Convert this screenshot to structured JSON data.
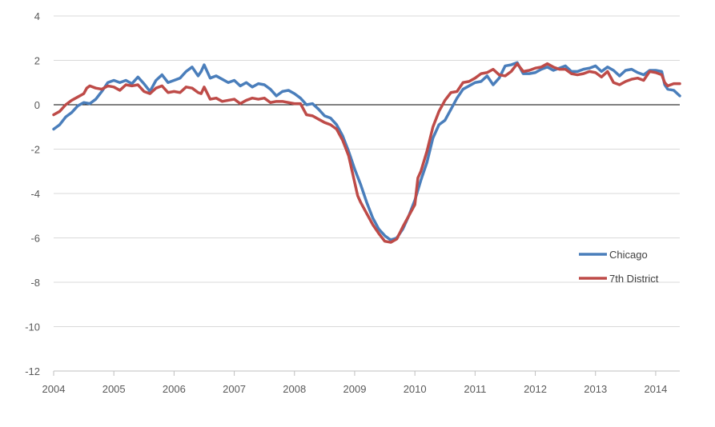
{
  "chart_data": {
    "type": "line",
    "title": "",
    "xlabel": "",
    "ylabel": "",
    "xlim": [
      2004.0,
      2014.4
    ],
    "ylim": [
      -12,
      4
    ],
    "y_ticks": [
      4,
      2,
      0,
      -2,
      -4,
      -6,
      -8,
      -10,
      -12
    ],
    "x_ticks": [
      2004,
      2005,
      2006,
      2007,
      2008,
      2009,
      2010,
      2011,
      2012,
      2013,
      2014
    ],
    "grid": "horizontal",
    "zero_line": true,
    "legend_position": "right",
    "series": [
      {
        "name": "Chicago",
        "color": "#4a7ebb",
        "points": [
          [
            2004.0,
            -1.1
          ],
          [
            2004.1,
            -0.9
          ],
          [
            2004.2,
            -0.55
          ],
          [
            2004.3,
            -0.35
          ],
          [
            2004.4,
            -0.05
          ],
          [
            2004.5,
            0.1
          ],
          [
            2004.6,
            0.05
          ],
          [
            2004.7,
            0.25
          ],
          [
            2004.8,
            0.6
          ],
          [
            2004.9,
            1.0
          ],
          [
            2005.0,
            1.1
          ],
          [
            2005.1,
            1.0
          ],
          [
            2005.2,
            1.1
          ],
          [
            2005.3,
            0.95
          ],
          [
            2005.4,
            1.25
          ],
          [
            2005.5,
            0.95
          ],
          [
            2005.6,
            0.6
          ],
          [
            2005.7,
            1.1
          ],
          [
            2005.8,
            1.35
          ],
          [
            2005.9,
            1.0
          ],
          [
            2006.0,
            1.1
          ],
          [
            2006.1,
            1.2
          ],
          [
            2006.2,
            1.5
          ],
          [
            2006.3,
            1.7
          ],
          [
            2006.4,
            1.3
          ],
          [
            2006.45,
            1.5
          ],
          [
            2006.5,
            1.8
          ],
          [
            2006.6,
            1.2
          ],
          [
            2006.7,
            1.3
          ],
          [
            2006.8,
            1.15
          ],
          [
            2006.9,
            1.0
          ],
          [
            2007.0,
            1.1
          ],
          [
            2007.1,
            0.85
          ],
          [
            2007.2,
            1.0
          ],
          [
            2007.3,
            0.8
          ],
          [
            2007.4,
            0.95
          ],
          [
            2007.5,
            0.9
          ],
          [
            2007.6,
            0.7
          ],
          [
            2007.7,
            0.4
          ],
          [
            2007.8,
            0.6
          ],
          [
            2007.9,
            0.65
          ],
          [
            2008.0,
            0.5
          ],
          [
            2008.1,
            0.3
          ],
          [
            2008.2,
            0.0
          ],
          [
            2008.3,
            0.05
          ],
          [
            2008.4,
            -0.2
          ],
          [
            2008.5,
            -0.5
          ],
          [
            2008.6,
            -0.6
          ],
          [
            2008.7,
            -0.9
          ],
          [
            2008.8,
            -1.4
          ],
          [
            2008.9,
            -2.1
          ],
          [
            2009.0,
            -2.9
          ],
          [
            2009.1,
            -3.6
          ],
          [
            2009.2,
            -4.4
          ],
          [
            2009.3,
            -5.1
          ],
          [
            2009.4,
            -5.6
          ],
          [
            2009.5,
            -5.9
          ],
          [
            2009.6,
            -6.1
          ],
          [
            2009.7,
            -6.0
          ],
          [
            2009.8,
            -5.6
          ],
          [
            2009.9,
            -5.0
          ],
          [
            2010.0,
            -4.3
          ],
          [
            2010.1,
            -3.4
          ],
          [
            2010.2,
            -2.6
          ],
          [
            2010.3,
            -1.5
          ],
          [
            2010.4,
            -0.9
          ],
          [
            2010.5,
            -0.7
          ],
          [
            2010.6,
            -0.2
          ],
          [
            2010.7,
            0.3
          ],
          [
            2010.8,
            0.7
          ],
          [
            2010.9,
            0.85
          ],
          [
            2011.0,
            1.0
          ],
          [
            2011.1,
            1.05
          ],
          [
            2011.2,
            1.3
          ],
          [
            2011.3,
            0.9
          ],
          [
            2011.4,
            1.2
          ],
          [
            2011.5,
            1.75
          ],
          [
            2011.6,
            1.8
          ],
          [
            2011.7,
            1.9
          ],
          [
            2011.8,
            1.4
          ],
          [
            2011.9,
            1.4
          ],
          [
            2012.0,
            1.45
          ],
          [
            2012.1,
            1.6
          ],
          [
            2012.2,
            1.7
          ],
          [
            2012.3,
            1.55
          ],
          [
            2012.4,
            1.65
          ],
          [
            2012.5,
            1.75
          ],
          [
            2012.6,
            1.5
          ],
          [
            2012.7,
            1.5
          ],
          [
            2012.8,
            1.6
          ],
          [
            2012.9,
            1.65
          ],
          [
            2013.0,
            1.75
          ],
          [
            2013.1,
            1.5
          ],
          [
            2013.2,
            1.7
          ],
          [
            2013.3,
            1.55
          ],
          [
            2013.4,
            1.3
          ],
          [
            2013.5,
            1.55
          ],
          [
            2013.6,
            1.6
          ],
          [
            2013.7,
            1.45
          ],
          [
            2013.8,
            1.35
          ],
          [
            2013.9,
            1.55
          ],
          [
            2014.0,
            1.55
          ],
          [
            2014.1,
            1.5
          ],
          [
            2014.15,
            0.9
          ],
          [
            2014.2,
            0.7
          ],
          [
            2014.3,
            0.65
          ],
          [
            2014.4,
            0.4
          ]
        ]
      },
      {
        "name": "7th District",
        "color": "#be4b48",
        "points": [
          [
            2004.0,
            -0.45
          ],
          [
            2004.1,
            -0.3
          ],
          [
            2004.2,
            0.0
          ],
          [
            2004.3,
            0.2
          ],
          [
            2004.4,
            0.35
          ],
          [
            2004.5,
            0.5
          ],
          [
            2004.55,
            0.75
          ],
          [
            2004.6,
            0.85
          ],
          [
            2004.7,
            0.75
          ],
          [
            2004.8,
            0.7
          ],
          [
            2004.9,
            0.85
          ],
          [
            2005.0,
            0.8
          ],
          [
            2005.1,
            0.65
          ],
          [
            2005.2,
            0.9
          ],
          [
            2005.3,
            0.85
          ],
          [
            2005.4,
            0.9
          ],
          [
            2005.5,
            0.6
          ],
          [
            2005.6,
            0.5
          ],
          [
            2005.7,
            0.75
          ],
          [
            2005.8,
            0.85
          ],
          [
            2005.9,
            0.55
          ],
          [
            2006.0,
            0.6
          ],
          [
            2006.1,
            0.55
          ],
          [
            2006.2,
            0.8
          ],
          [
            2006.3,
            0.75
          ],
          [
            2006.4,
            0.55
          ],
          [
            2006.45,
            0.5
          ],
          [
            2006.5,
            0.8
          ],
          [
            2006.6,
            0.25
          ],
          [
            2006.7,
            0.3
          ],
          [
            2006.8,
            0.15
          ],
          [
            2006.9,
            0.2
          ],
          [
            2007.0,
            0.25
          ],
          [
            2007.1,
            0.05
          ],
          [
            2007.2,
            0.2
          ],
          [
            2007.3,
            0.3
          ],
          [
            2007.4,
            0.25
          ],
          [
            2007.5,
            0.3
          ],
          [
            2007.6,
            0.1
          ],
          [
            2007.7,
            0.15
          ],
          [
            2007.8,
            0.15
          ],
          [
            2007.9,
            0.1
          ],
          [
            2008.0,
            0.05
          ],
          [
            2008.1,
            0.05
          ],
          [
            2008.2,
            -0.45
          ],
          [
            2008.3,
            -0.5
          ],
          [
            2008.4,
            -0.65
          ],
          [
            2008.5,
            -0.8
          ],
          [
            2008.6,
            -0.9
          ],
          [
            2008.7,
            -1.1
          ],
          [
            2008.8,
            -1.6
          ],
          [
            2008.9,
            -2.3
          ],
          [
            2009.0,
            -3.5
          ],
          [
            2009.05,
            -4.1
          ],
          [
            2009.1,
            -4.4
          ],
          [
            2009.2,
            -4.9
          ],
          [
            2009.3,
            -5.4
          ],
          [
            2009.4,
            -5.8
          ],
          [
            2009.5,
            -6.15
          ],
          [
            2009.6,
            -6.2
          ],
          [
            2009.7,
            -6.05
          ],
          [
            2009.8,
            -5.5
          ],
          [
            2009.9,
            -5.0
          ],
          [
            2010.0,
            -4.5
          ],
          [
            2010.05,
            -3.3
          ],
          [
            2010.1,
            -3.0
          ],
          [
            2010.2,
            -2.1
          ],
          [
            2010.3,
            -1.0
          ],
          [
            2010.4,
            -0.3
          ],
          [
            2010.5,
            0.2
          ],
          [
            2010.6,
            0.55
          ],
          [
            2010.7,
            0.6
          ],
          [
            2010.8,
            1.0
          ],
          [
            2010.9,
            1.05
          ],
          [
            2011.0,
            1.2
          ],
          [
            2011.1,
            1.4
          ],
          [
            2011.2,
            1.45
          ],
          [
            2011.3,
            1.6
          ],
          [
            2011.4,
            1.35
          ],
          [
            2011.5,
            1.3
          ],
          [
            2011.6,
            1.5
          ],
          [
            2011.7,
            1.85
          ],
          [
            2011.8,
            1.5
          ],
          [
            2011.9,
            1.55
          ],
          [
            2012.0,
            1.65
          ],
          [
            2012.1,
            1.7
          ],
          [
            2012.2,
            1.85
          ],
          [
            2012.3,
            1.7
          ],
          [
            2012.4,
            1.6
          ],
          [
            2012.5,
            1.6
          ],
          [
            2012.6,
            1.4
          ],
          [
            2012.7,
            1.35
          ],
          [
            2012.8,
            1.4
          ],
          [
            2012.9,
            1.5
          ],
          [
            2013.0,
            1.45
          ],
          [
            2013.1,
            1.25
          ],
          [
            2013.2,
            1.5
          ],
          [
            2013.3,
            1.0
          ],
          [
            2013.4,
            0.9
          ],
          [
            2013.5,
            1.05
          ],
          [
            2013.6,
            1.15
          ],
          [
            2013.7,
            1.2
          ],
          [
            2013.8,
            1.1
          ],
          [
            2013.9,
            1.5
          ],
          [
            2014.0,
            1.45
          ],
          [
            2014.1,
            1.35
          ],
          [
            2014.15,
            1.0
          ],
          [
            2014.2,
            0.85
          ],
          [
            2014.3,
            0.95
          ],
          [
            2014.4,
            0.95
          ]
        ]
      }
    ],
    "legend": [
      {
        "name": "Chicago",
        "color": "#4a7ebb"
      },
      {
        "name": "7th District",
        "color": "#be4b48"
      }
    ]
  }
}
